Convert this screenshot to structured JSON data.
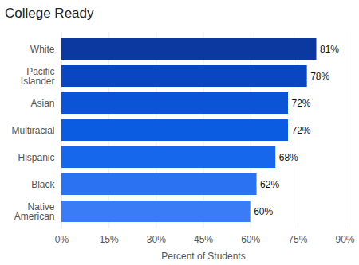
{
  "chart_data": {
    "type": "bar",
    "title": "College Ready",
    "orientation": "horizontal",
    "categories": [
      "White",
      "Pacific Islander",
      "Asian",
      "Multiracial",
      "Hispanic",
      "Black",
      "Native American"
    ],
    "values": [
      81,
      78,
      72,
      72,
      68,
      62,
      60
    ],
    "value_labels": [
      "81%",
      "78%",
      "72%",
      "72%",
      "68%",
      "62%",
      "60%"
    ],
    "colors": [
      "#0c39a0",
      "#0a46c2",
      "#0b54d6",
      "#0c5ce2",
      "#1767ec",
      "#2b72f2",
      "#3a7cf5"
    ],
    "data_labels": true,
    "xlabel": "Percent of Students",
    "xlim": [
      0,
      90
    ],
    "xticks": [
      {
        "value": 0,
        "label": "0%"
      },
      {
        "value": 15,
        "label": "15%"
      },
      {
        "value": 30,
        "label": "30%"
      },
      {
        "value": 45,
        "label": "45%"
      },
      {
        "value": 60,
        "label": "60%"
      },
      {
        "value": 75,
        "label": "75%"
      },
      {
        "value": 90,
        "label": "90%"
      }
    ],
    "grid": true
  }
}
